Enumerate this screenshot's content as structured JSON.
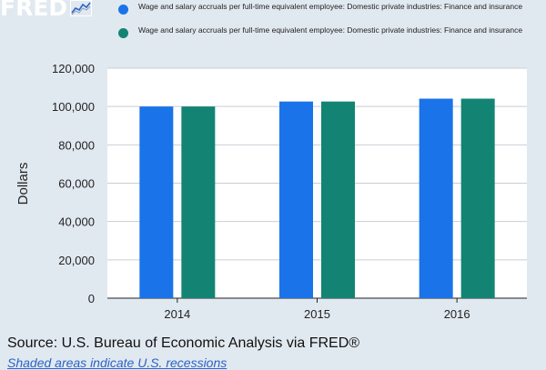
{
  "logo": {
    "text": "FRED",
    "icon": "fred-line-chart-icon"
  },
  "legend": [
    {
      "label": "Wage and salary accruals per full-time equivalent employee: Domestic private industries: Finance and insurance",
      "color": "#1a73e8"
    },
    {
      "label": "Wage and salary accruals per full-time equivalent employee: Domestic private industries: Finance and insurance",
      "color": "#138473"
    }
  ],
  "chart_data": {
    "type": "bar",
    "categories": [
      "2014",
      "2015",
      "2016"
    ],
    "series": [
      {
        "values": [
          100000,
          102600,
          104100
        ],
        "color": "#1a73e8"
      },
      {
        "values": [
          100000,
          102600,
          104100
        ],
        "color": "#138473"
      }
    ],
    "ylabel": "Dollars",
    "ylim": [
      0,
      120000
    ],
    "yticks": [
      0,
      20000,
      40000,
      60000,
      80000,
      100000,
      120000
    ],
    "ytick_labels": [
      "0",
      "20,000",
      "40,000",
      "60,000",
      "80,000",
      "100,000",
      "120,000"
    ],
    "grid": true
  },
  "footer": {
    "source": "Source: U.S. Bureau of Economic Analysis via FRED®",
    "note": "Shaded areas indicate U.S. recessions"
  }
}
